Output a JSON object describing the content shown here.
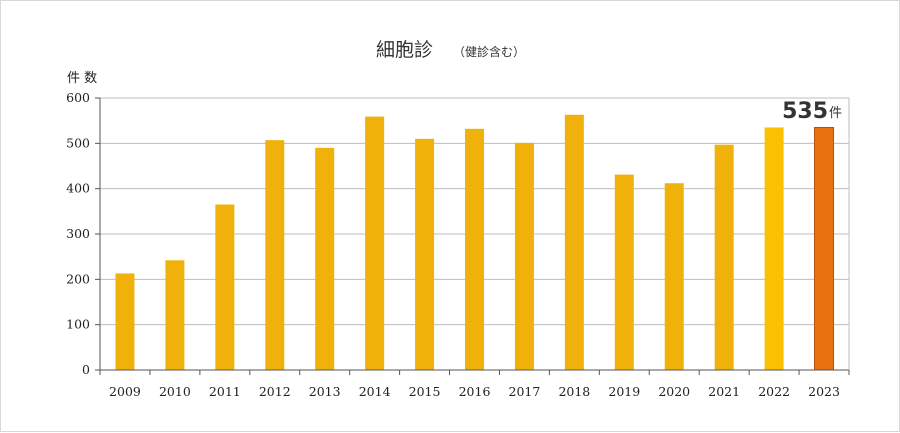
{
  "chart_data": {
    "type": "bar",
    "title": "細胞診",
    "subtitle": "（健診含む）",
    "ylabel": "件 数",
    "xlabel": "",
    "categories": [
      "2009",
      "2010",
      "2011",
      "2012",
      "2013",
      "2014",
      "2015",
      "2016",
      "2017",
      "2018",
      "2019",
      "2020",
      "2021",
      "2022",
      "2023"
    ],
    "values": [
      213,
      242,
      365,
      507,
      490,
      559,
      510,
      532,
      501,
      563,
      431,
      412,
      497,
      535,
      535
    ],
    "ylim": [
      0,
      600
    ],
    "yticks": [
      "0",
      "100",
      "200",
      "300",
      "400",
      "500",
      "600"
    ],
    "grid": true,
    "legend": "none",
    "highlight": {
      "category": "2023",
      "value_label": "535",
      "unit": "件"
    },
    "colors": {
      "bar": "#f0b20a",
      "bar_2022": "#fbc002",
      "highlight_bar": "#e8700f",
      "highlight_edge": "#b8520a",
      "grid": "#bdbdbd",
      "axis": "#555555"
    }
  }
}
